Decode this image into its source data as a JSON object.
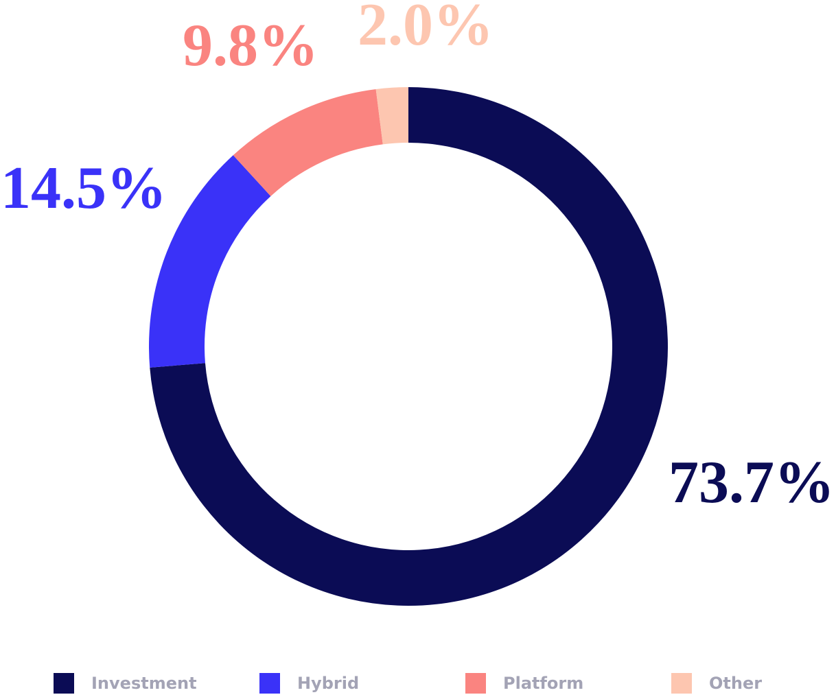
{
  "chart_data": {
    "type": "donut",
    "categories": [
      "Investment",
      "Hybrid",
      "Platform",
      "Other"
    ],
    "values": [
      73.7,
      14.5,
      9.8,
      2.0
    ],
    "value_labels": [
      "73.7%",
      "14.5%",
      "9.8%",
      "2.0%"
    ],
    "colors": [
      "#0b0c55",
      "#3a32f8",
      "#fa8480",
      "#fdc6b0"
    ]
  }
}
